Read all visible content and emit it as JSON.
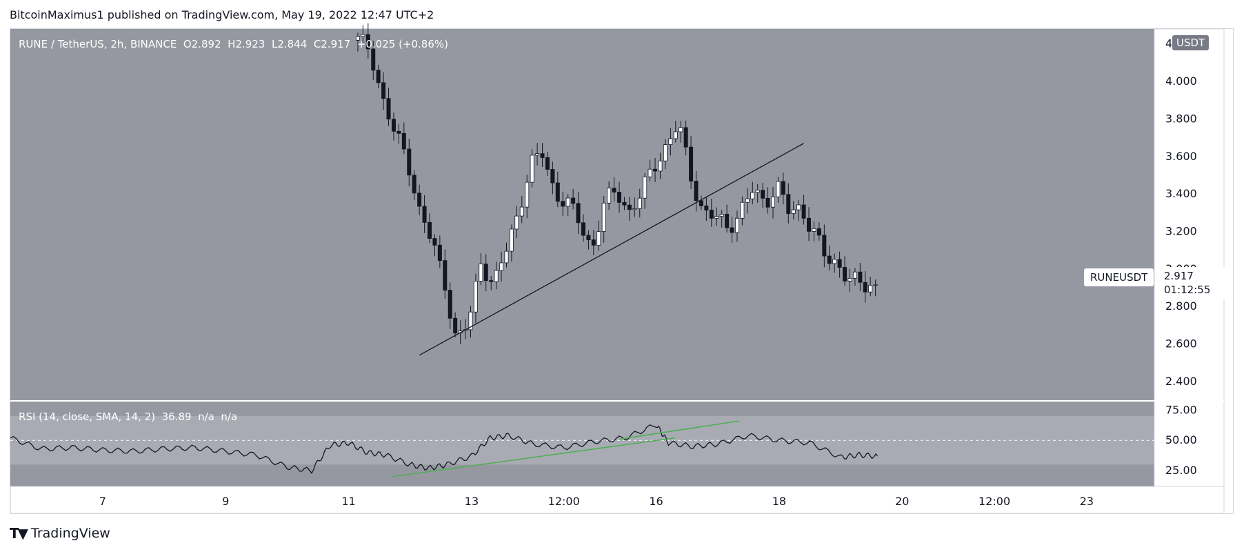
{
  "header": {
    "published_line": "BitcoinMaximus1 published on TradingView.com, May 19, 2022 12:47 UTC+2"
  },
  "legend": {
    "symbol": "RUNE / TetherUS, 2h, BINANCE",
    "o_label": "O",
    "o_value": "2.892",
    "h_label": "H",
    "h_value": "2.923",
    "l_label": "L",
    "l_value": "2.844",
    "c_label": "C",
    "c_value": "2.917",
    "change": "+0.025 (+0.86%)"
  },
  "rsi_legend": {
    "title": "RSI (14, close, SMA, 14, 2)",
    "value": "36.89",
    "na1": "n/a",
    "na2": "n/a"
  },
  "currency_badge": "USDT",
  "symbol_tag": "RUNEUSDT",
  "last_price": "2.917",
  "countdown": "01:12:55",
  "footer": {
    "brand": "TradingView"
  },
  "colors": {
    "pane_bg": "#9598a1",
    "rsi_band": "#a8abb3",
    "candle_up": "#ffffff",
    "candle_down": "#131722",
    "trendline": "#131722",
    "rsi_line": "#131722",
    "rsi_trendline": "#4caf50"
  },
  "chart_data": [
    {
      "type": "candlestick",
      "title": "RUNE / TetherUS, 2h, BINANCE",
      "ylabel": "USDT",
      "ylim": [
        2.3,
        4.28
      ],
      "y_ticks": [
        4.2,
        4.0,
        3.8,
        3.6,
        3.4,
        3.2,
        3.0,
        2.8,
        2.6,
        2.4
      ],
      "y_tick_labels": [
        "4.200",
        "4.000",
        "3.800",
        "3.600",
        "3.400",
        "3.200",
        "3.000",
        "2.800",
        "2.600",
        "2.400"
      ],
      "x_tick_labels": [
        "7",
        "9",
        "11",
        "13",
        "12:00",
        "16",
        "18",
        "20",
        "12:00",
        "23"
      ],
      "x_tick_days": [
        7,
        9,
        11,
        13,
        14.5,
        16,
        18,
        20,
        21.5,
        23
      ],
      "x_range_days": [
        5.5,
        24.1
      ],
      "candle_days": [
        11.15,
        19.6
      ],
      "last_close": 2.917,
      "close_path": [
        4.22,
        4.18,
        3.9,
        3.72,
        3.6,
        3.3,
        3.15,
        2.95,
        2.6,
        2.72,
        3.05,
        2.9,
        3.1,
        3.3,
        3.55,
        3.62,
        3.4,
        3.35,
        3.25,
        3.1,
        3.35,
        3.42,
        3.3,
        3.4,
        3.55,
        3.65,
        3.78,
        3.5,
        3.3,
        3.28,
        3.22,
        3.3,
        3.42,
        3.35,
        3.45,
        3.3,
        3.32,
        3.2,
        3.05,
        3.02,
        2.95,
        2.9,
        2.917
      ],
      "trendline": {
        "start": {
          "day": 12.15,
          "price": 2.54
        },
        "end": {
          "day": 18.4,
          "price": 3.67
        }
      },
      "grid": false
    },
    {
      "type": "line",
      "title": "RSI (14, close, SMA, 14, 2)",
      "ylim": [
        12,
        82
      ],
      "y_ticks": [
        75,
        50,
        25
      ],
      "y_tick_labels": [
        "75.00",
        "50.00",
        "25.00"
      ],
      "band": [
        30,
        70
      ],
      "midline": 50,
      "last_value": 36.89,
      "anchor_days": [
        5.5,
        6.0,
        6.5,
        7.0,
        7.5,
        8.0,
        8.5,
        9.0,
        9.5,
        10.0,
        10.4,
        10.7,
        11.0,
        11.3,
        11.6,
        12.0,
        12.3,
        12.6,
        13.0,
        13.3,
        13.6,
        14.0,
        14.5,
        15.0,
        15.5,
        16.0,
        16.2,
        16.6,
        17.0,
        17.5,
        18.0,
        18.5,
        19.0,
        19.3,
        19.6
      ],
      "anchor_values": [
        52,
        43,
        44,
        42,
        41,
        43,
        44,
        41,
        38,
        28,
        25,
        46,
        48,
        40,
        38,
        30,
        27,
        30,
        37,
        52,
        54,
        47,
        44,
        49,
        52,
        63,
        48,
        45,
        47,
        54,
        50,
        48,
        36,
        38,
        37
      ],
      "trendlines": [
        {
          "start": {
            "day": 11.7,
            "value": 20
          },
          "end": {
            "day": 16.3,
            "value": 52
          }
        },
        {
          "start": {
            "day": 15.4,
            "value": 51
          },
          "end": {
            "day": 17.35,
            "value": 66
          }
        }
      ],
      "grid": false
    }
  ]
}
